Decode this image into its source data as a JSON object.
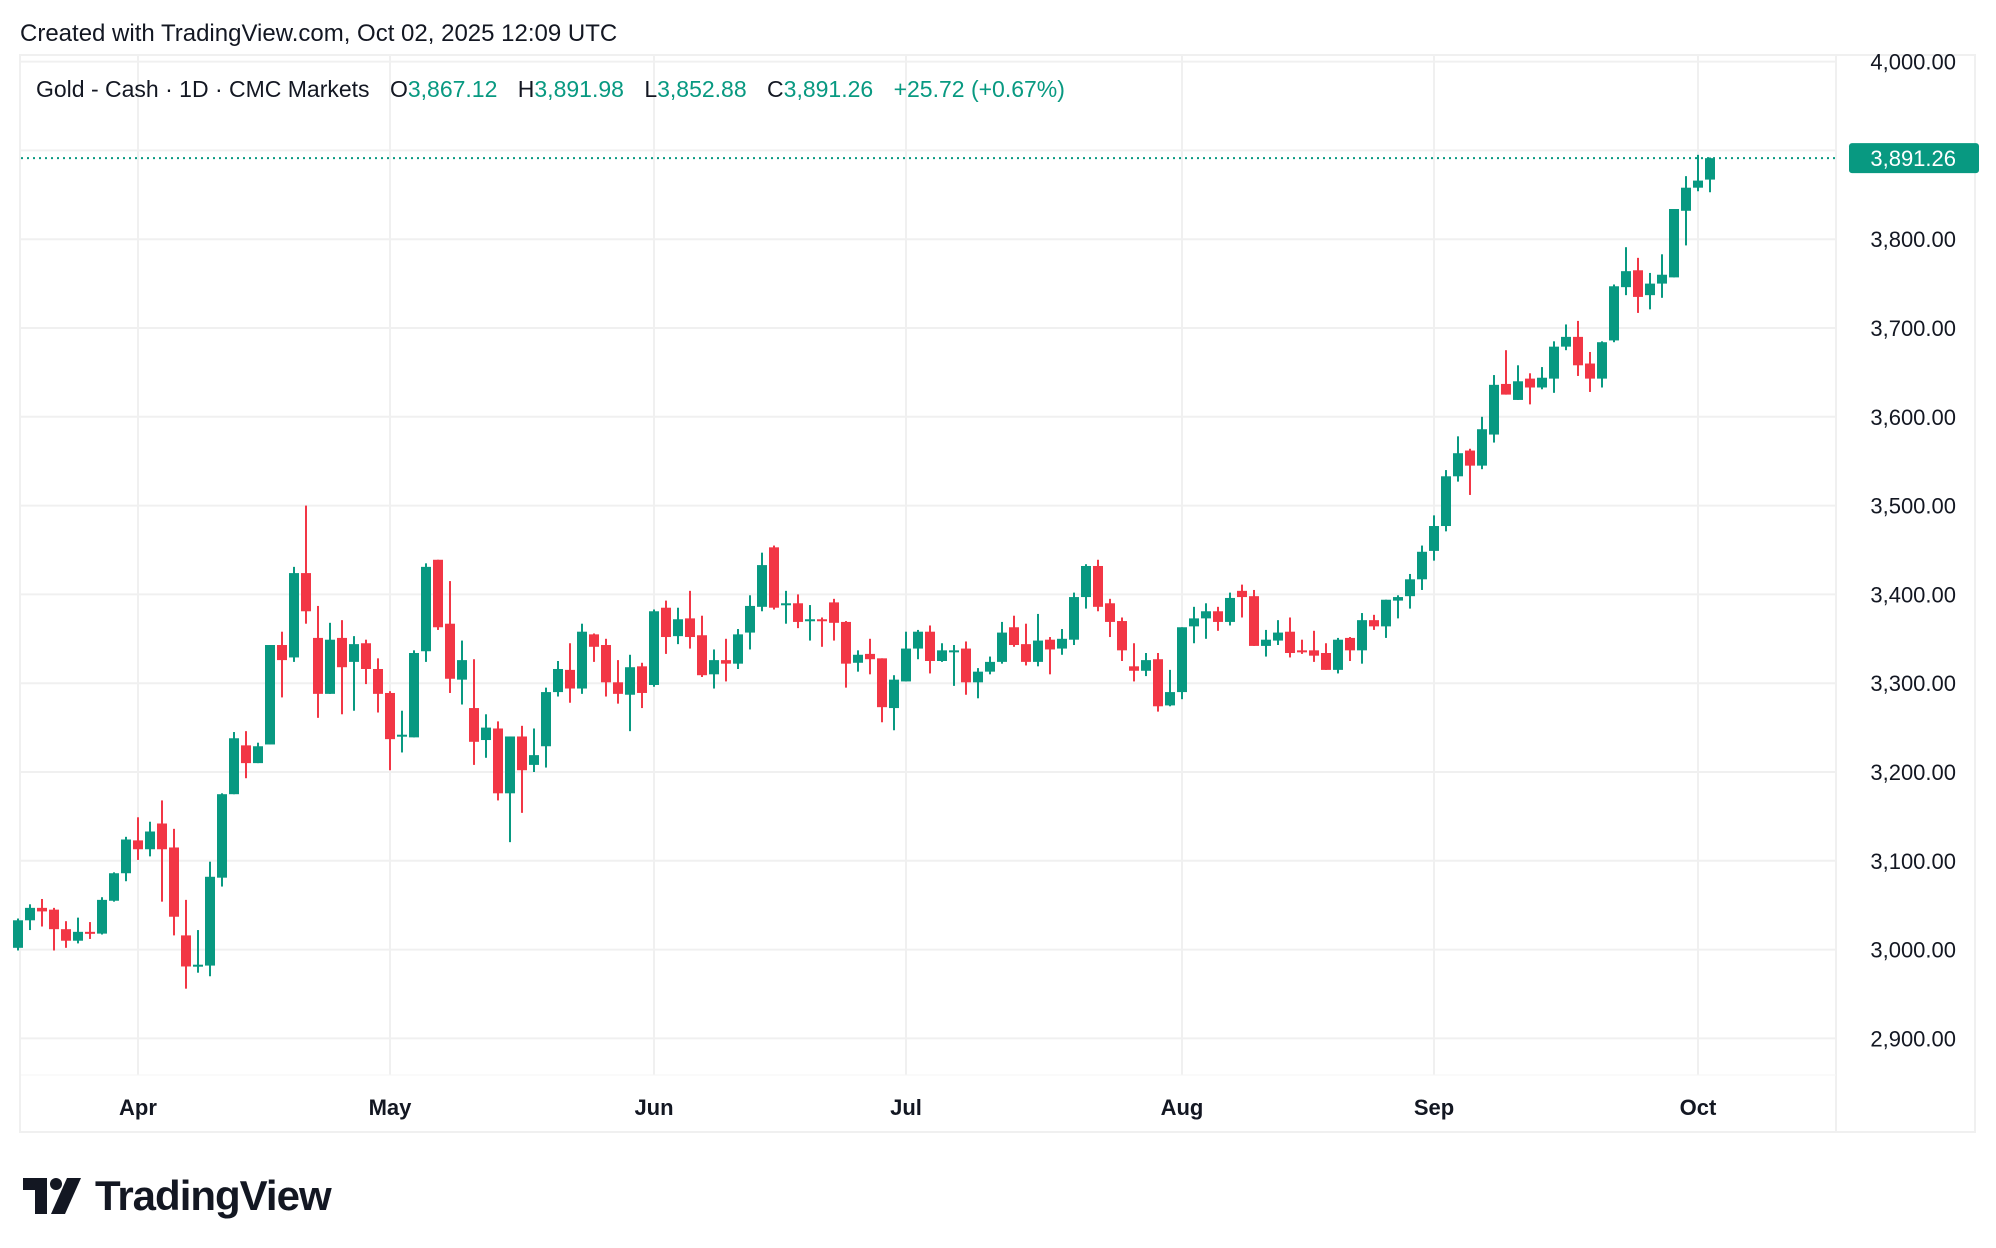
{
  "header": {
    "created": "Created with TradingView.com, Oct 02, 2025 12:09 UTC"
  },
  "legend": {
    "title": "Gold - Cash · 1D · CMC Markets",
    "o_label": "O",
    "o": "3,867.12",
    "h_label": "H",
    "h": "3,891.98",
    "l_label": "L",
    "l": "3,852.88",
    "c_label": "C",
    "c": "3,891.26",
    "change": "+25.72 (+0.67%)"
  },
  "logo": {
    "text": "TradingView",
    "mark": "TV"
  },
  "colors": {
    "up": "#089981",
    "down": "#F23645",
    "grid": "#f0f0f0",
    "text": "#131722"
  },
  "chart_data": {
    "type": "candlestick",
    "title": "Gold - Cash · 1D · CMC Markets",
    "ylim": [
      2850,
      4025
    ],
    "grid": true,
    "last_price": 3891.26,
    "last_price_label": "3,891.26",
    "y_ticks": [
      {
        "value": 4000,
        "label": "4,000.00"
      },
      {
        "value": 3800,
        "label": "3,800.00"
      },
      {
        "value": 3700,
        "label": "3,700.00"
      },
      {
        "value": 3600,
        "label": "3,600.00"
      },
      {
        "value": 3500,
        "label": "3,500.00"
      },
      {
        "value": 3400,
        "label": "3,400.00"
      },
      {
        "value": 3300,
        "label": "3,300.00"
      },
      {
        "value": 3200,
        "label": "3,200.00"
      },
      {
        "value": 3100,
        "label": "3,100.00"
      },
      {
        "value": 3000,
        "label": "3,000.00"
      },
      {
        "value": 2900,
        "label": "2,900.00"
      }
    ],
    "y_grid": [
      4000,
      3900,
      3800,
      3700,
      3600,
      3500,
      3400,
      3300,
      3200,
      3100,
      3000,
      2900
    ],
    "x_ticks": [
      {
        "label": "Apr",
        "index": 11
      },
      {
        "label": "May",
        "index": 32
      },
      {
        "label": "Jun",
        "index": 54
      },
      {
        "label": "Jul",
        "index": 75
      },
      {
        "label": "Aug",
        "index": 98
      },
      {
        "label": "Sep",
        "index": 119
      },
      {
        "label": "Oct",
        "index": 141
      }
    ],
    "ohlc_fields": [
      "open",
      "high",
      "low",
      "close"
    ],
    "candles": [
      [
        3002,
        3035,
        2999,
        3033
      ],
      [
        3033,
        3051,
        3022,
        3047
      ],
      [
        3047,
        3057,
        3026,
        3043
      ],
      [
        3045,
        3047,
        2999,
        3023
      ],
      [
        3023,
        3032,
        3002,
        3010
      ],
      [
        3010,
        3036,
        3007,
        3020
      ],
      [
        3020,
        3031,
        3012,
        3018
      ],
      [
        3018,
        3059,
        3017,
        3056
      ],
      [
        3055,
        3087,
        3054,
        3086
      ],
      [
        3086,
        3127,
        3077,
        3124
      ],
      [
        3123,
        3149,
        3101,
        3113
      ],
      [
        3113,
        3144,
        3105,
        3133
      ],
      [
        3142,
        3168,
        3054,
        3113
      ],
      [
        3115,
        3136,
        3016,
        3037
      ],
      [
        3016,
        3056,
        2956,
        2981
      ],
      [
        2981,
        3022,
        2974,
        2983
      ],
      [
        2982,
        3099,
        2970,
        3082
      ],
      [
        3081,
        3176,
        3071,
        3175
      ],
      [
        3175,
        3245,
        3175,
        3238
      ],
      [
        3230,
        3246,
        3193,
        3210
      ],
      [
        3210,
        3233,
        3210,
        3229
      ],
      [
        3231,
        3343,
        3231,
        3343
      ],
      [
        3343,
        3358,
        3284,
        3326
      ],
      [
        3329,
        3431,
        3324,
        3424
      ],
      [
        3424,
        3500,
        3367,
        3381
      ],
      [
        3351,
        3387,
        3261,
        3288
      ],
      [
        3288,
        3368,
        3288,
        3349
      ],
      [
        3351,
        3371,
        3265,
        3318
      ],
      [
        3324,
        3353,
        3269,
        3344
      ],
      [
        3345,
        3349,
        3299,
        3316
      ],
      [
        3316,
        3328,
        3267,
        3288
      ],
      [
        3289,
        3291,
        3202,
        3237
      ],
      [
        3240,
        3269,
        3222,
        3242
      ],
      [
        3239,
        3337,
        3239,
        3334
      ],
      [
        3336,
        3435,
        3324,
        3431
      ],
      [
        3439,
        3439,
        3360,
        3363
      ],
      [
        3367,
        3415,
        3289,
        3305
      ],
      [
        3304,
        3348,
        3276,
        3326
      ],
      [
        3272,
        3327,
        3208,
        3234
      ],
      [
        3236,
        3265,
        3216,
        3250
      ],
      [
        3249,
        3257,
        3168,
        3176
      ],
      [
        3176,
        3240,
        3121,
        3240
      ],
      [
        3240,
        3252,
        3154,
        3202
      ],
      [
        3208,
        3249,
        3200,
        3219
      ],
      [
        3229,
        3295,
        3205,
        3290
      ],
      [
        3290,
        3325,
        3285,
        3316
      ],
      [
        3315,
        3345,
        3278,
        3294
      ],
      [
        3294,
        3367,
        3288,
        3358
      ],
      [
        3355,
        3356,
        3324,
        3341
      ],
      [
        3343,
        3350,
        3285,
        3301
      ],
      [
        3301,
        3326,
        3277,
        3288
      ],
      [
        3287,
        3332,
        3246,
        3318
      ],
      [
        3319,
        3323,
        3272,
        3289
      ],
      [
        3298,
        3383,
        3296,
        3381
      ],
      [
        3385,
        3393,
        3333,
        3352
      ],
      [
        3353,
        3385,
        3344,
        3372
      ],
      [
        3373,
        3404,
        3339,
        3352
      ],
      [
        3354,
        3376,
        3307,
        3309
      ],
      [
        3310,
        3338,
        3294,
        3326
      ],
      [
        3326,
        3350,
        3302,
        3322
      ],
      [
        3322,
        3361,
        3316,
        3355
      ],
      [
        3357,
        3399,
        3338,
        3387
      ],
      [
        3386,
        3447,
        3381,
        3433
      ],
      [
        3453,
        3455,
        3383,
        3385
      ],
      [
        3388,
        3404,
        3367,
        3390
      ],
      [
        3390,
        3400,
        3362,
        3369
      ],
      [
        3370,
        3388,
        3348,
        3372
      ],
      [
        3372,
        3374,
        3341,
        3370
      ],
      [
        3391,
        3395,
        3348,
        3368
      ],
      [
        3369,
        3370,
        3295,
        3322
      ],
      [
        3323,
        3337,
        3313,
        3332
      ],
      [
        3333,
        3350,
        3310,
        3327
      ],
      [
        3328,
        3328,
        3256,
        3273
      ],
      [
        3272,
        3309,
        3247,
        3304
      ],
      [
        3302,
        3358,
        3302,
        3339
      ],
      [
        3339,
        3360,
        3327,
        3358
      ],
      [
        3358,
        3365,
        3311,
        3325
      ],
      [
        3325,
        3345,
        3324,
        3337
      ],
      [
        3336,
        3343,
        3297,
        3337
      ],
      [
        3339,
        3347,
        3287,
        3301
      ],
      [
        3301,
        3317,
        3283,
        3313
      ],
      [
        3313,
        3330,
        3310,
        3324
      ],
      [
        3324,
        3369,
        3322,
        3357
      ],
      [
        3363,
        3376,
        3341,
        3343
      ],
      [
        3344,
        3367,
        3320,
        3324
      ],
      [
        3324,
        3378,
        3319,
        3348
      ],
      [
        3349,
        3352,
        3310,
        3338
      ],
      [
        3339,
        3361,
        3332,
        3350
      ],
      [
        3349,
        3402,
        3343,
        3397
      ],
      [
        3397,
        3434,
        3384,
        3432
      ],
      [
        3432,
        3439,
        3381,
        3386
      ],
      [
        3390,
        3395,
        3352,
        3369
      ],
      [
        3370,
        3374,
        3325,
        3337
      ],
      [
        3319,
        3345,
        3302,
        3314
      ],
      [
        3314,
        3334,
        3308,
        3326
      ],
      [
        3327,
        3334,
        3268,
        3274
      ],
      [
        3275,
        3315,
        3274,
        3290
      ],
      [
        3290,
        3363,
        3282,
        3363
      ],
      [
        3364,
        3386,
        3345,
        3373
      ],
      [
        3373,
        3390,
        3350,
        3381
      ],
      [
        3381,
        3386,
        3359,
        3369
      ],
      [
        3369,
        3402,
        3365,
        3396
      ],
      [
        3404,
        3411,
        3374,
        3397
      ],
      [
        3398,
        3405,
        3342,
        3342
      ],
      [
        3342,
        3360,
        3330,
        3349
      ],
      [
        3348,
        3371,
        3343,
        3357
      ],
      [
        3358,
        3374,
        3329,
        3334
      ],
      [
        3337,
        3349,
        3333,
        3336
      ],
      [
        3337,
        3359,
        3324,
        3331
      ],
      [
        3334,
        3345,
        3315,
        3315
      ],
      [
        3315,
        3351,
        3311,
        3349
      ],
      [
        3351,
        3352,
        3325,
        3337
      ],
      [
        3337,
        3379,
        3322,
        3371
      ],
      [
        3371,
        3377,
        3360,
        3364
      ],
      [
        3364,
        3394,
        3351,
        3394
      ],
      [
        3393,
        3399,
        3373,
        3397
      ],
      [
        3398,
        3423,
        3384,
        3417
      ],
      [
        3417,
        3455,
        3405,
        3448
      ],
      [
        3449,
        3489,
        3438,
        3477
      ],
      [
        3477,
        3540,
        3471,
        3533
      ],
      [
        3533,
        3578,
        3527,
        3559
      ],
      [
        3562,
        3564,
        3512,
        3545
      ],
      [
        3545,
        3600,
        3541,
        3586
      ],
      [
        3580,
        3647,
        3571,
        3636
      ],
      [
        3637,
        3675,
        3625,
        3625
      ],
      [
        3619,
        3658,
        3619,
        3640
      ],
      [
        3643,
        3649,
        3614,
        3633
      ],
      [
        3633,
        3656,
        3631,
        3644
      ],
      [
        3643,
        3685,
        3627,
        3679
      ],
      [
        3679,
        3704,
        3675,
        3690
      ],
      [
        3690,
        3708,
        3646,
        3658
      ],
      [
        3660,
        3673,
        3628,
        3643
      ],
      [
        3643,
        3685,
        3633,
        3684
      ],
      [
        3686,
        3749,
        3684,
        3747
      ],
      [
        3746,
        3791,
        3737,
        3764
      ],
      [
        3765,
        3779,
        3717,
        3735
      ],
      [
        3737,
        3762,
        3721,
        3750
      ],
      [
        3750,
        3783,
        3734,
        3760
      ],
      [
        3757,
        3834,
        3757,
        3834
      ],
      [
        3832,
        3871,
        3793,
        3858
      ],
      [
        3858,
        3895,
        3854,
        3866
      ],
      [
        3867.12,
        3891.98,
        3852.88,
        3891.26
      ]
    ]
  }
}
